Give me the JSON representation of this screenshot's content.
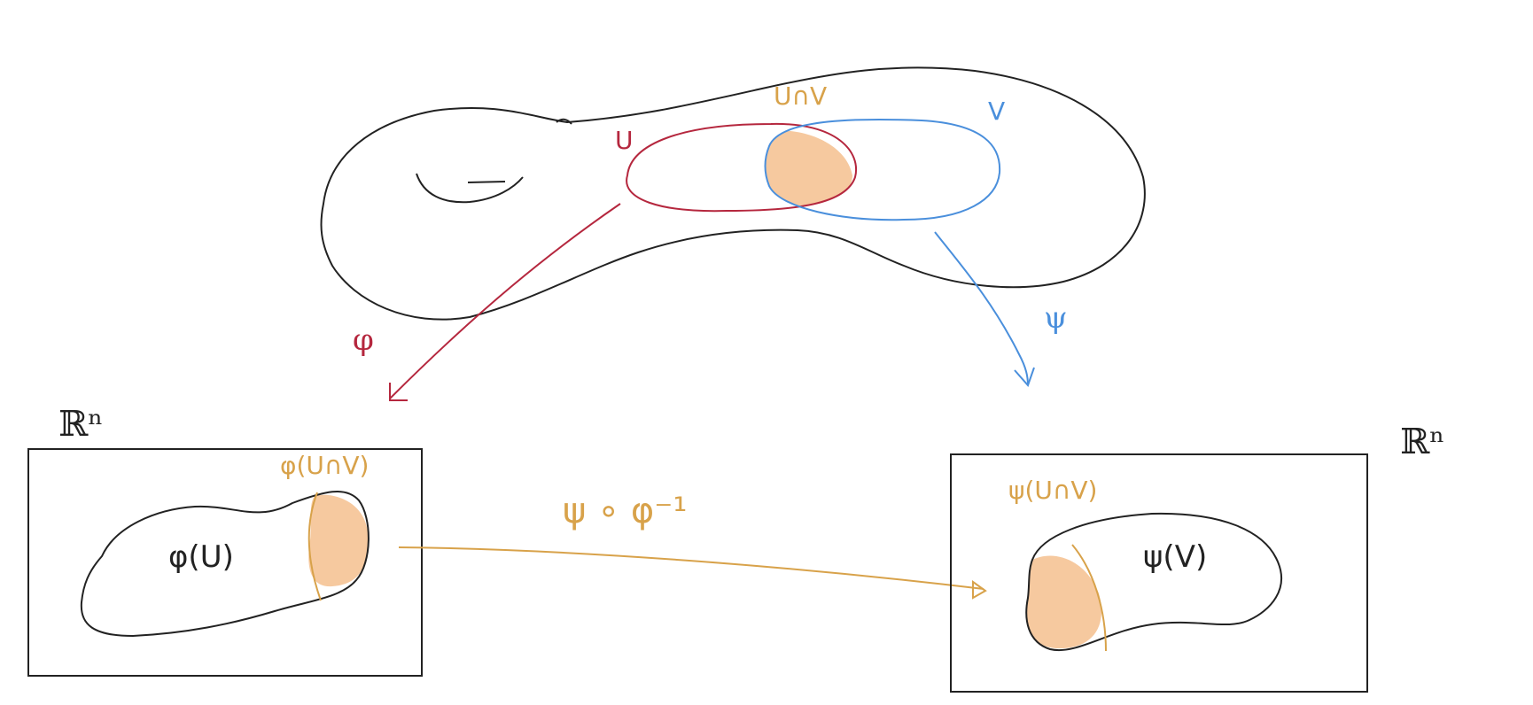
{
  "colors": {
    "ink": "#222222",
    "u_chart": "#b5273e",
    "v_chart": "#4a8fdc",
    "overlap": "#f6c99f",
    "transition": "#d8a24a"
  },
  "manifold": {
    "u_label": "U",
    "v_label": "V",
    "overlap_label": "U∩V"
  },
  "maps": {
    "phi_label": "φ",
    "psi_label": "ψ",
    "transition_label": "ψ ∘ φ⁻¹"
  },
  "left_space": {
    "space_label": "ℝⁿ",
    "region_label": "φ(U)",
    "overlap_label": "φ(U∩V)"
  },
  "right_space": {
    "space_label": "ℝⁿ",
    "region_label": "ψ(V)",
    "overlap_label": "ψ(U∩V)"
  }
}
